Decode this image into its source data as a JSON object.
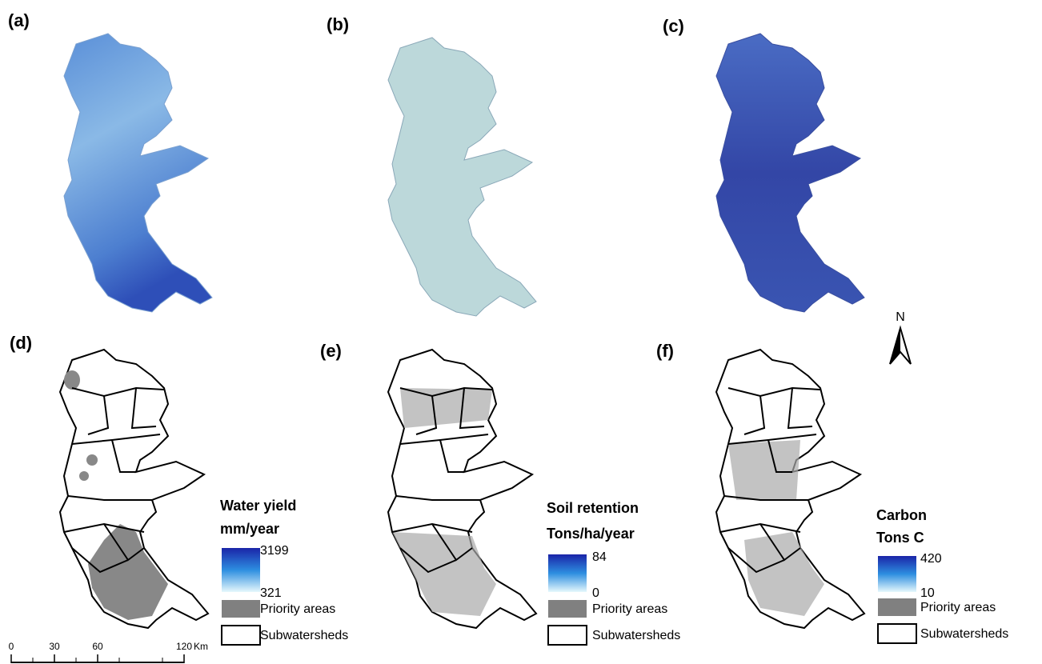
{
  "panels": [
    {
      "label": "(a)"
    },
    {
      "label": "(b)"
    },
    {
      "label": "(c)"
    },
    {
      "label": "(d)"
    },
    {
      "label": "(e)"
    },
    {
      "label": "(f)"
    }
  ],
  "legends": [
    {
      "title": "Water yield",
      "unit": "mm/year",
      "max": 3199,
      "min": 321,
      "priority": "Priority areas",
      "subwatersheds": "Subwatersheds"
    },
    {
      "title": "Soil retention",
      "unit": "Tons/ha/year",
      "max": 84,
      "min": 0,
      "priority": "Priority areas",
      "subwatersheds": "Subwatersheds"
    },
    {
      "title": "Carbon",
      "unit": "Tons C",
      "max": 420,
      "min": 10,
      "priority": "Priority areas",
      "subwatersheds": "Subwatersheds"
    }
  ],
  "scale_bar": {
    "ticks": [
      0,
      30,
      60,
      120
    ],
    "unit": "Km"
  },
  "north": "N"
}
